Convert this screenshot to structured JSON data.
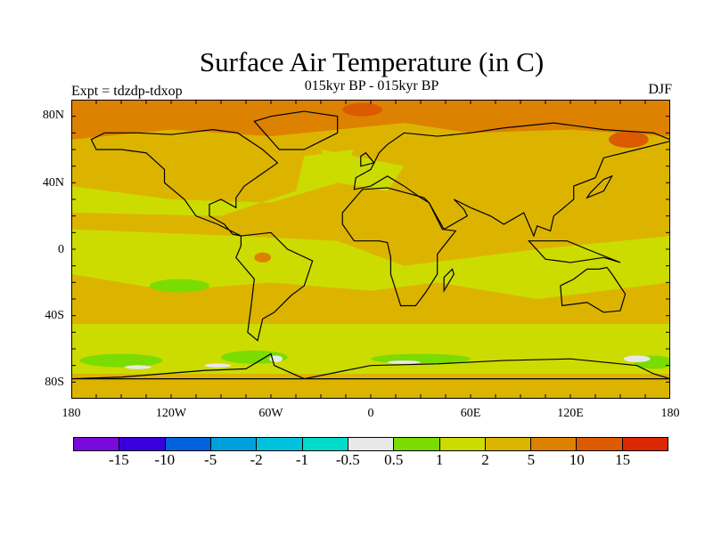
{
  "title": "Surface Air Temperature (in C)",
  "subtitle": "015kyr BP - 015kyr BP",
  "left_label": "Expt = tdzdp-tdxop",
  "right_label": "DJF",
  "lat_labels": [
    "80N",
    "40N",
    "0",
    "40S",
    "80S"
  ],
  "lon_labels": [
    "180",
    "120W",
    "60W",
    "0",
    "60E",
    "120E",
    "180"
  ],
  "colorbar": {
    "colors": [
      "#7a0adc",
      "#3a00dc",
      "#0062dc",
      "#00a0dc",
      "#00c2dc",
      "#00dccc",
      "#e8e8e8",
      "#7adc00",
      "#ccdc00",
      "#dcb400",
      "#dc8200",
      "#dc5a00",
      "#dc2800"
    ],
    "labels": [
      "-15",
      "-10",
      "-5",
      "-2",
      "-1",
      "-0.5",
      "0.5",
      "1",
      "2",
      "5",
      "10",
      "15"
    ]
  }
}
